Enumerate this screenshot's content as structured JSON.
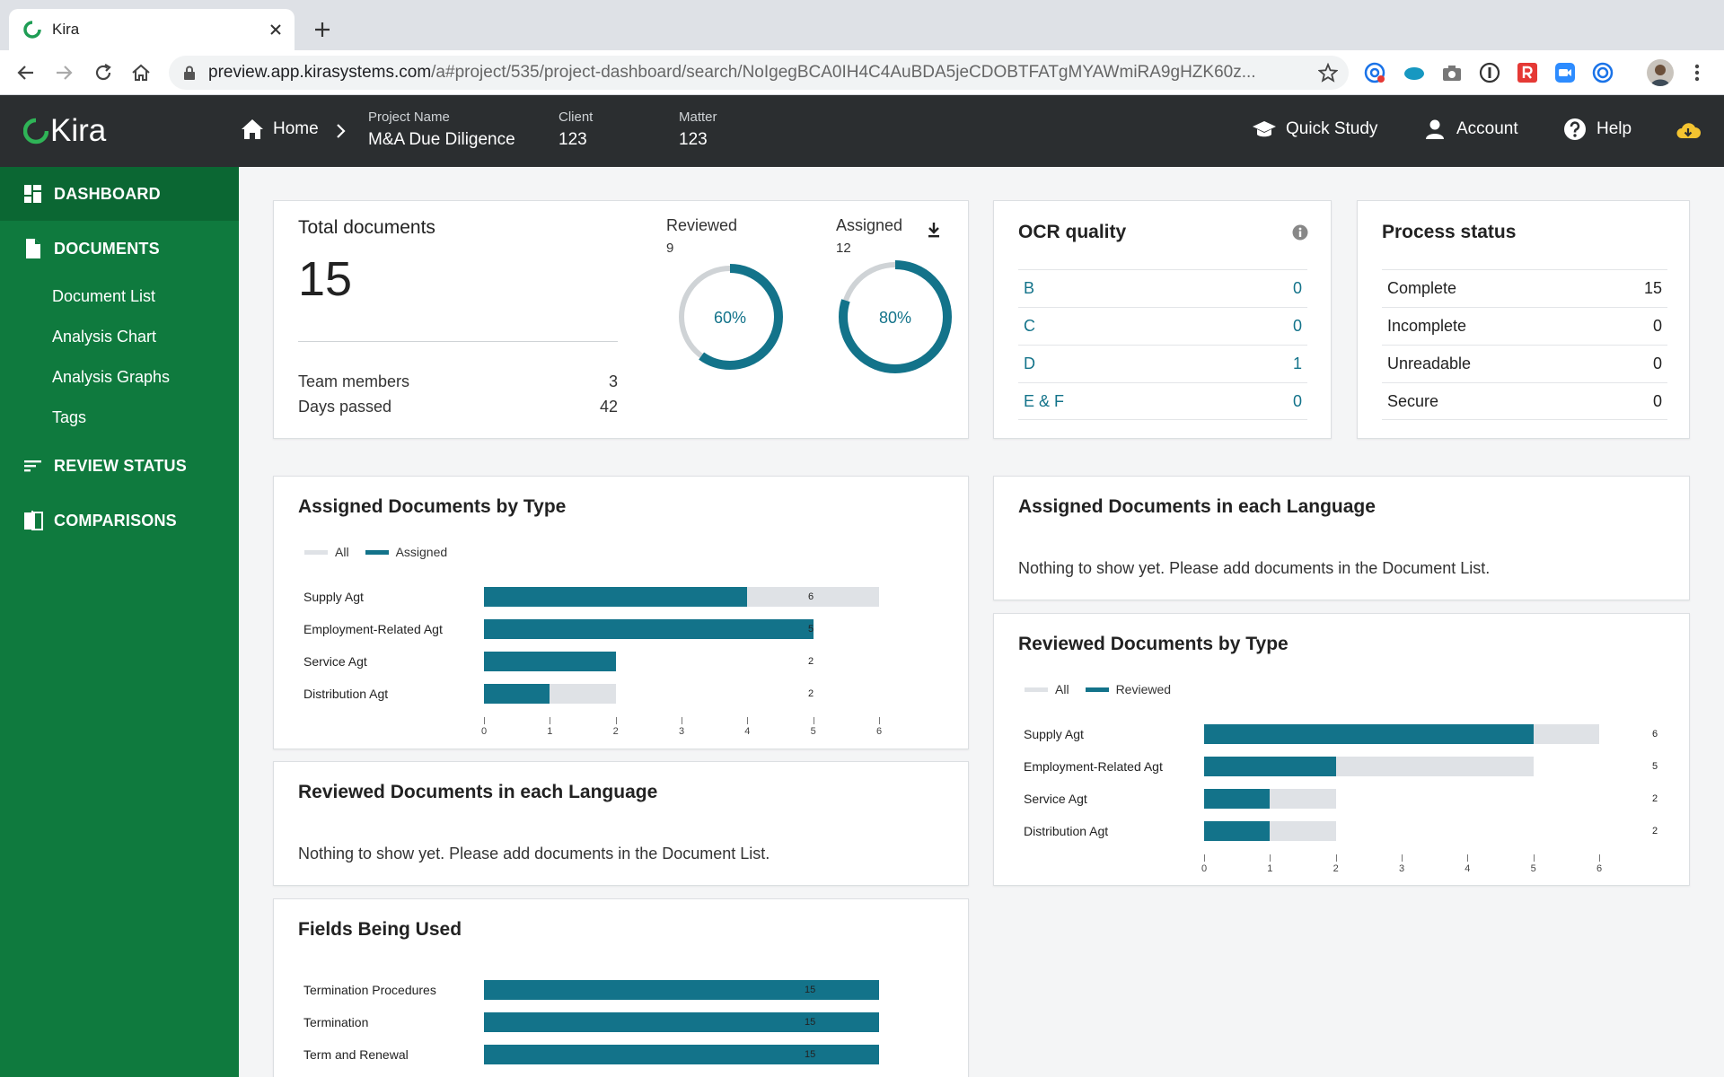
{
  "browser": {
    "tab_title": "Kira",
    "url_host": "preview.app.kirasystems.com",
    "url_path": "/a#project/535/project-dashboard/search/NoIgegBCA0IH4C4AuBDA5jeCDOBTFATgMYAWmiRA9gHZK60z..."
  },
  "app": {
    "logo_text": "Kira",
    "home_label": "Home",
    "project_key": "Project Name",
    "project_value": "M&A Due Diligence",
    "client_key": "Client",
    "client_value": "123",
    "matter_key": "Matter",
    "matter_value": "123",
    "quick_study": "Quick Study",
    "account": "Account",
    "help": "Help"
  },
  "sidebar": {
    "dashboard": "DASHBOARD",
    "documents": "DOCUMENTS",
    "document_list": "Document List",
    "analysis_chart": "Analysis Chart",
    "analysis_graphs": "Analysis Graphs",
    "tags": "Tags",
    "review_status": "REVIEW STATUS",
    "comparisons": "COMPARISONS"
  },
  "total_docs": {
    "title": "Total documents",
    "count": "15",
    "team_members_label": "Team members",
    "team_members_value": "3",
    "days_passed_label": "Days passed",
    "days_passed_value": "42",
    "reviewed_label": "Reviewed",
    "reviewed_count": "9",
    "reviewed_pct": "60%",
    "reviewed_fraction": 0.6,
    "assigned_label": "Assigned",
    "assigned_count": "12",
    "assigned_pct": "80%",
    "assigned_fraction": 0.8
  },
  "ocr": {
    "title": "OCR quality",
    "rows": [
      {
        "label": "B",
        "value": "0"
      },
      {
        "label": "C",
        "value": "0"
      },
      {
        "label": "D",
        "value": "1"
      },
      {
        "label": "E & F",
        "value": "0"
      }
    ]
  },
  "process": {
    "title": "Process status",
    "rows": [
      {
        "label": "Complete",
        "value": "15"
      },
      {
        "label": "Incomplete",
        "value": "0"
      },
      {
        "label": "Unreadable",
        "value": "0"
      },
      {
        "label": "Secure",
        "value": "0"
      }
    ]
  },
  "assigned_by_type": {
    "title": "Assigned Documents by Type",
    "legend_all": "All",
    "legend_series": "Assigned"
  },
  "assigned_lang": {
    "title": "Assigned Documents in each Language",
    "message": "Nothing to show yet. Please add documents in the Document List."
  },
  "reviewed_by_type": {
    "title": "Reviewed Documents by Type",
    "legend_all": "All",
    "legend_series": "Reviewed"
  },
  "reviewed_lang": {
    "title": "Reviewed Documents in each Language",
    "message": "Nothing to show yet. Please add documents in the Document List."
  },
  "fields": {
    "title": "Fields Being Used"
  },
  "colors": {
    "sidebar": "#0f7a3e",
    "header": "#2b2e30",
    "accent": "#13738a",
    "bar_bg": "#dfe2e6"
  },
  "chart_data": [
    {
      "type": "bar",
      "orientation": "horizontal",
      "title": "Assigned Documents by Type",
      "categories": [
        "Supply Agt",
        "Employment-Related Agt",
        "Service Agt",
        "Distribution Agt"
      ],
      "series": [
        {
          "name": "All",
          "values": [
            6,
            5,
            2,
            2
          ]
        },
        {
          "name": "Assigned",
          "values": [
            4,
            5,
            2,
            1
          ]
        }
      ],
      "value_labels": [
        "6",
        "5",
        "2",
        "2"
      ],
      "xlim": [
        0,
        6
      ],
      "x_ticks": [
        "0",
        "1",
        "2",
        "3",
        "4",
        "5",
        "6"
      ],
      "legend": "top-left"
    },
    {
      "type": "bar",
      "orientation": "horizontal",
      "title": "Reviewed Documents by Type",
      "categories": [
        "Supply Agt",
        "Employment-Related Agt",
        "Service Agt",
        "Distribution Agt"
      ],
      "series": [
        {
          "name": "All",
          "values": [
            6,
            5,
            2,
            2
          ]
        },
        {
          "name": "Reviewed",
          "values": [
            5,
            2,
            1,
            1
          ]
        }
      ],
      "value_labels": [
        "6",
        "5",
        "2",
        "2"
      ],
      "xlim": [
        0,
        6
      ],
      "x_ticks": [
        "0",
        "1",
        "2",
        "3",
        "4",
        "5",
        "6"
      ],
      "legend": "top-left"
    },
    {
      "type": "bar",
      "orientation": "horizontal",
      "title": "Fields Being Used",
      "categories": [
        "Termination Procedures",
        "Termination",
        "Term and Renewal"
      ],
      "series": [
        {
          "values": [
            15,
            15,
            15
          ]
        }
      ],
      "value_labels": [
        "15",
        "15",
        "15"
      ],
      "xlim": [
        0,
        15
      ]
    }
  ]
}
